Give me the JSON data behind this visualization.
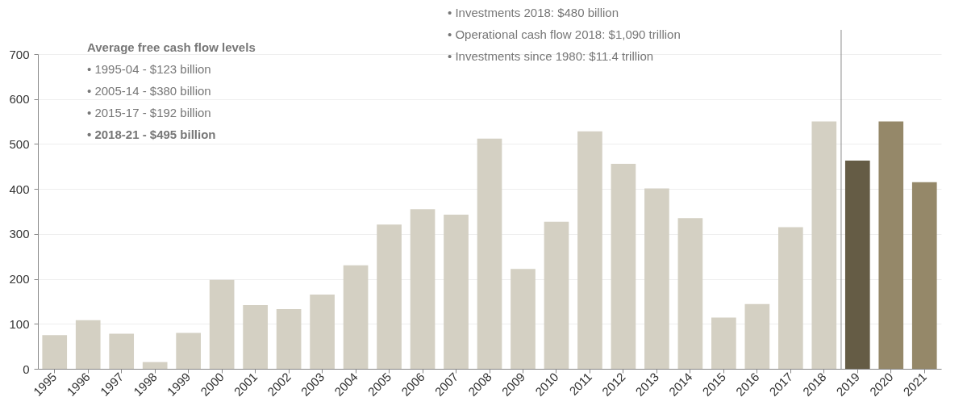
{
  "chart_data": {
    "type": "bar",
    "categories": [
      "1995",
      "1996",
      "1997",
      "1998",
      "1999",
      "2000",
      "2001",
      "2002",
      "2003",
      "2004",
      "2005",
      "2006",
      "2007",
      "2008",
      "2009",
      "2010",
      "2011",
      "2012",
      "2013",
      "2014",
      "2015",
      "2016",
      "2017",
      "2018",
      "2019",
      "2020",
      "2021"
    ],
    "values": [
      75,
      108,
      78,
      15,
      80,
      198,
      142,
      133,
      165,
      230,
      321,
      355,
      343,
      512,
      222,
      327,
      528,
      456,
      401,
      335,
      114,
      144,
      315,
      550,
      463,
      550,
      415
    ],
    "colors": [
      "#d4d0c3",
      "#d4d0c3",
      "#d4d0c3",
      "#d4d0c3",
      "#d4d0c3",
      "#d4d0c3",
      "#d4d0c3",
      "#d4d0c3",
      "#d4d0c3",
      "#d4d0c3",
      "#d4d0c3",
      "#d4d0c3",
      "#d4d0c3",
      "#d4d0c3",
      "#d4d0c3",
      "#d4d0c3",
      "#d4d0c3",
      "#d4d0c3",
      "#d4d0c3",
      "#d4d0c3",
      "#d4d0c3",
      "#d4d0c3",
      "#d4d0c3",
      "#d4d0c3",
      "#655c45",
      "#958869",
      "#958869"
    ],
    "ylim": [
      0,
      700
    ],
    "yticks": [
      0,
      100,
      200,
      300,
      400,
      500,
      600,
      700
    ],
    "grid": "y",
    "ref_lines": [
      {
        "axis": "x",
        "value": "2019",
        "color": "#888888"
      }
    ],
    "annotations": [
      "Average free cash flow levels",
      "• 1995-04 - $123 billion",
      "• 2005-14 - $380 billion",
      "• 2015-17 - $192 billion",
      "• 2018-21 - $495 billion",
      "• Investments 2018: $480 billion",
      "• Operational cash flow 2018: $1,090 trillion",
      "• Investments since 1980: $11.4 trillion"
    ]
  }
}
